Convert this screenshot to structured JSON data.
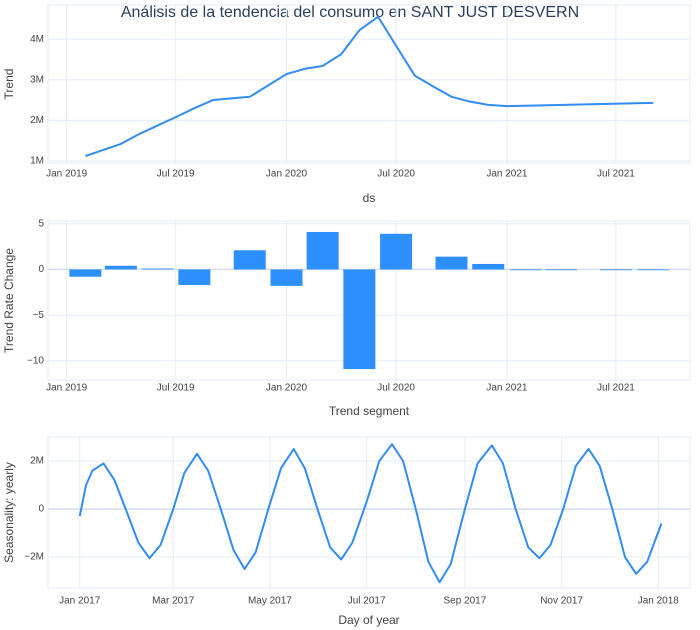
{
  "chart_data": [
    {
      "type": "line",
      "title": "Análisis de la tendencia del consumo en SANT JUST DESVERN",
      "x_label": "ds",
      "y_label": "Trend",
      "color": "#338cf0",
      "grid": true,
      "x": [
        "2019-02",
        "2019-04",
        "2019-05",
        "2019-07",
        "2019-08",
        "2019-09",
        "2019-11",
        "2020-01",
        "2020-02",
        "2020-03",
        "2020-04",
        "2020-05",
        "2020-06",
        "2020-08",
        "2020-09",
        "2020-10",
        "2020-11",
        "2020-12",
        "2021-01",
        "2021-09"
      ],
      "values": [
        1120000,
        1420000,
        1660000,
        2080000,
        2300000,
        2500000,
        2580000,
        3140000,
        3270000,
        3340000,
        3630000,
        4220000,
        4550000,
        3100000,
        2830000,
        2580000,
        2460000,
        2380000,
        2350000,
        2430000
      ],
      "xlim": [
        "2018-12",
        "2021-11"
      ],
      "xticks": [
        {
          "value": "2019-01",
          "label": "Jan 2019"
        },
        {
          "value": "2019-07",
          "label": "Jul 2019"
        },
        {
          "value": "2020-01",
          "label": "Jan 2020"
        },
        {
          "value": "2020-07",
          "label": "Jul 2020"
        },
        {
          "value": "2021-01",
          "label": "Jan 2021"
        },
        {
          "value": "2021-07",
          "label": "Jul 2021"
        }
      ],
      "ylim": [
        950000,
        4840000
      ],
      "yticks": [
        {
          "value": 1000000,
          "label": "1M"
        },
        {
          "value": 2000000,
          "label": "2M"
        },
        {
          "value": 3000000,
          "label": "3M"
        },
        {
          "value": 4000000,
          "label": "4M"
        }
      ]
    },
    {
      "type": "bar",
      "x_label": "Trend segment",
      "y_label": "Trend Rate Change",
      "color": "#2e8fff",
      "grid": true,
      "x": [
        "2019-02",
        "2019-04",
        "2019-06",
        "2019-08",
        "2019-11",
        "2020-01",
        "2020-03",
        "2020-05",
        "2020-07",
        "2020-10",
        "2020-12",
        "2021-02",
        "2021-04",
        "2021-07",
        "2021-09"
      ],
      "values": [
        -0.8,
        0.4,
        0.1,
        -1.7,
        2.1,
        -1.8,
        4.1,
        -10.9,
        3.9,
        1.4,
        0.6,
        0,
        0,
        0,
        -0.05
      ],
      "xlim": [
        "2018-12",
        "2021-11"
      ],
      "xticks": [
        {
          "value": "2019-01",
          "label": "Jan 2019"
        },
        {
          "value": "2019-07",
          "label": "Jul 2019"
        },
        {
          "value": "2020-01",
          "label": "Jan 2020"
        },
        {
          "value": "2020-07",
          "label": "Jul 2020"
        },
        {
          "value": "2021-01",
          "label": "Jan 2021"
        },
        {
          "value": "2021-07",
          "label": "Jul 2021"
        }
      ],
      "ylim": [
        -12.1,
        5.3
      ],
      "yticks": [
        5,
        0,
        {
          "value": -5,
          "label": "−5"
        },
        {
          "value": -10,
          "label": "−10"
        }
      ]
    },
    {
      "type": "line",
      "x_label": "Day of year",
      "y_label": "Seasonality: yearly",
      "color": "#338cf0",
      "grid": true,
      "x": [
        0,
        4,
        8,
        15,
        22,
        29,
        37,
        44,
        51,
        59,
        66,
        74,
        81,
        89,
        97,
        104,
        111,
        119,
        127,
        135,
        142,
        150,
        158,
        165,
        172,
        181,
        189,
        197,
        204,
        212,
        220,
        227,
        234,
        243,
        251,
        260,
        267,
        275,
        283,
        290,
        297,
        305,
        313,
        321,
        328,
        336,
        344,
        351,
        358,
        367
      ],
      "values": [
        -300000,
        1000000,
        1600000,
        1900000,
        1200000,
        0,
        -1400000,
        -2050000,
        -1500000,
        0,
        1500000,
        2300000,
        1600000,
        0,
        -1700000,
        -2500000,
        -1800000,
        0,
        1700000,
        2500000,
        1700000,
        0,
        -1600000,
        -2100000,
        -1400000,
        300000,
        2000000,
        2700000,
        2000000,
        0,
        -2200000,
        -3050000,
        -2300000,
        0,
        1900000,
        2650000,
        1900000,
        0,
        -1600000,
        -2050000,
        -1500000,
        0,
        1800000,
        2500000,
        1800000,
        0,
        -2000000,
        -2700000,
        -2200000,
        -600000
      ],
      "xlim": [
        -20,
        385
      ],
      "xticks": [
        {
          "value": 0,
          "label": "Jan 2017"
        },
        {
          "value": 59,
          "label": "Mar 2017"
        },
        {
          "value": 120,
          "label": "May 2017"
        },
        {
          "value": 181,
          "label": "Jul 2017"
        },
        {
          "value": 243,
          "label": "Sep 2017"
        },
        {
          "value": 304,
          "label": "Nov 2017"
        },
        {
          "value": 365,
          "label": "Jan 2018"
        }
      ],
      "ylim": [
        -3290000,
        3000000
      ],
      "yticks": [
        {
          "value": 2000000,
          "label": "2M"
        },
        0,
        {
          "value": -2000000,
          "label": "−2M"
        }
      ]
    }
  ]
}
